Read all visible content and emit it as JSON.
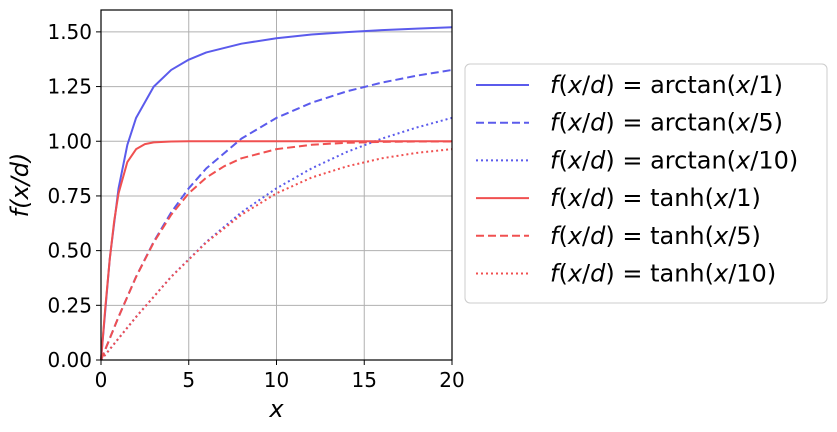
{
  "chart_data": {
    "type": "line",
    "title": "",
    "xlabel": "x",
    "ylabel": "f(x/d)",
    "xlim": [
      0,
      20
    ],
    "ylim": [
      0,
      1.6
    ],
    "xticks": [
      0,
      5,
      10,
      15,
      20
    ],
    "xtick_labels": [
      "0",
      "5",
      "10",
      "15",
      "20"
    ],
    "yticks": [
      0,
      0.25,
      0.5,
      0.75,
      1.0,
      1.25,
      1.5
    ],
    "ytick_labels": [
      "0.00",
      "0.25",
      "0.50",
      "0.75",
      "1.00",
      "1.25",
      "1.50"
    ],
    "grid": true,
    "legend_position": "outside-right",
    "series": [
      {
        "name": "f(x/d) = arctan(x/1)",
        "name_parts": [
          "f",
          "(",
          "x",
          "/",
          "d",
          ") = arctan(",
          "x",
          "/1)"
        ],
        "color": "#5b5bec",
        "dash": "solid",
        "x": [
          0,
          0.5,
          1,
          1.5,
          2,
          3,
          4,
          5,
          6,
          8,
          10,
          12,
          14,
          16,
          18,
          20
        ],
        "y": [
          0,
          0.464,
          0.785,
          0.983,
          1.107,
          1.249,
          1.326,
          1.373,
          1.406,
          1.446,
          1.471,
          1.488,
          1.499,
          1.508,
          1.515,
          1.521
        ]
      },
      {
        "name": "f(x/d) = arctan(x/5)",
        "name_parts": [
          "f",
          "(",
          "x",
          "/",
          "d",
          ") = arctan(",
          "x",
          "/5)"
        ],
        "color": "#5b5bec",
        "dash": "dashed",
        "x": [
          0,
          1,
          2,
          3,
          4,
          5,
          6,
          8,
          10,
          12,
          14,
          16,
          18,
          20
        ],
        "y": [
          0,
          0.197,
          0.381,
          0.54,
          0.675,
          0.785,
          0.876,
          1.012,
          1.107,
          1.176,
          1.228,
          1.268,
          1.3,
          1.326
        ]
      },
      {
        "name": "f(x/d) = arctan(x/10)",
        "name_parts": [
          "f",
          "(",
          "x",
          "/",
          "d",
          ") = arctan(",
          "x",
          "/10)"
        ],
        "color": "#5b5bec",
        "dash": "dotted",
        "x": [
          0,
          2,
          4,
          6,
          8,
          10,
          12,
          14,
          16,
          18,
          20
        ],
        "y": [
          0,
          0.197,
          0.381,
          0.54,
          0.675,
          0.785,
          0.876,
          0.951,
          1.012,
          1.063,
          1.107
        ]
      },
      {
        "name": "f(x/d) = tanh(x/1)",
        "name_parts": [
          "f",
          "(",
          "x",
          "/",
          "d",
          ") = tanh(",
          "x",
          "/1)"
        ],
        "color": "#f05050",
        "dash": "solid",
        "x": [
          0,
          0.25,
          0.5,
          0.75,
          1,
          1.5,
          2,
          2.5,
          3,
          4,
          5,
          10,
          20
        ],
        "y": [
          0,
          0.245,
          0.462,
          0.635,
          0.762,
          0.905,
          0.964,
          0.987,
          0.995,
          0.999,
          1.0,
          1.0,
          1.0
        ]
      },
      {
        "name": "f(x/d) = tanh(x/5)",
        "name_parts": [
          "f",
          "(",
          "x",
          "/",
          "d",
          ") = tanh(",
          "x",
          "/5)"
        ],
        "color": "#f05050",
        "dash": "dashed",
        "x": [
          0,
          1,
          2,
          3,
          4,
          5,
          6,
          7,
          8,
          10,
          12,
          14,
          16,
          18,
          20
        ],
        "y": [
          0,
          0.197,
          0.38,
          0.537,
          0.664,
          0.762,
          0.834,
          0.885,
          0.922,
          0.964,
          0.984,
          0.993,
          0.997,
          0.999,
          0.999
        ]
      },
      {
        "name": "f(x/d) = tanh(x/10)",
        "name_parts": [
          "f",
          "(",
          "x",
          "/",
          "d",
          ") = tanh(",
          "x",
          "/10)"
        ],
        "color": "#f05050",
        "dash": "dotted",
        "x": [
          0,
          2,
          4,
          6,
          8,
          10,
          12,
          14,
          16,
          18,
          20
        ],
        "y": [
          0,
          0.197,
          0.38,
          0.537,
          0.664,
          0.762,
          0.834,
          0.885,
          0.922,
          0.947,
          0.964
        ]
      }
    ]
  }
}
